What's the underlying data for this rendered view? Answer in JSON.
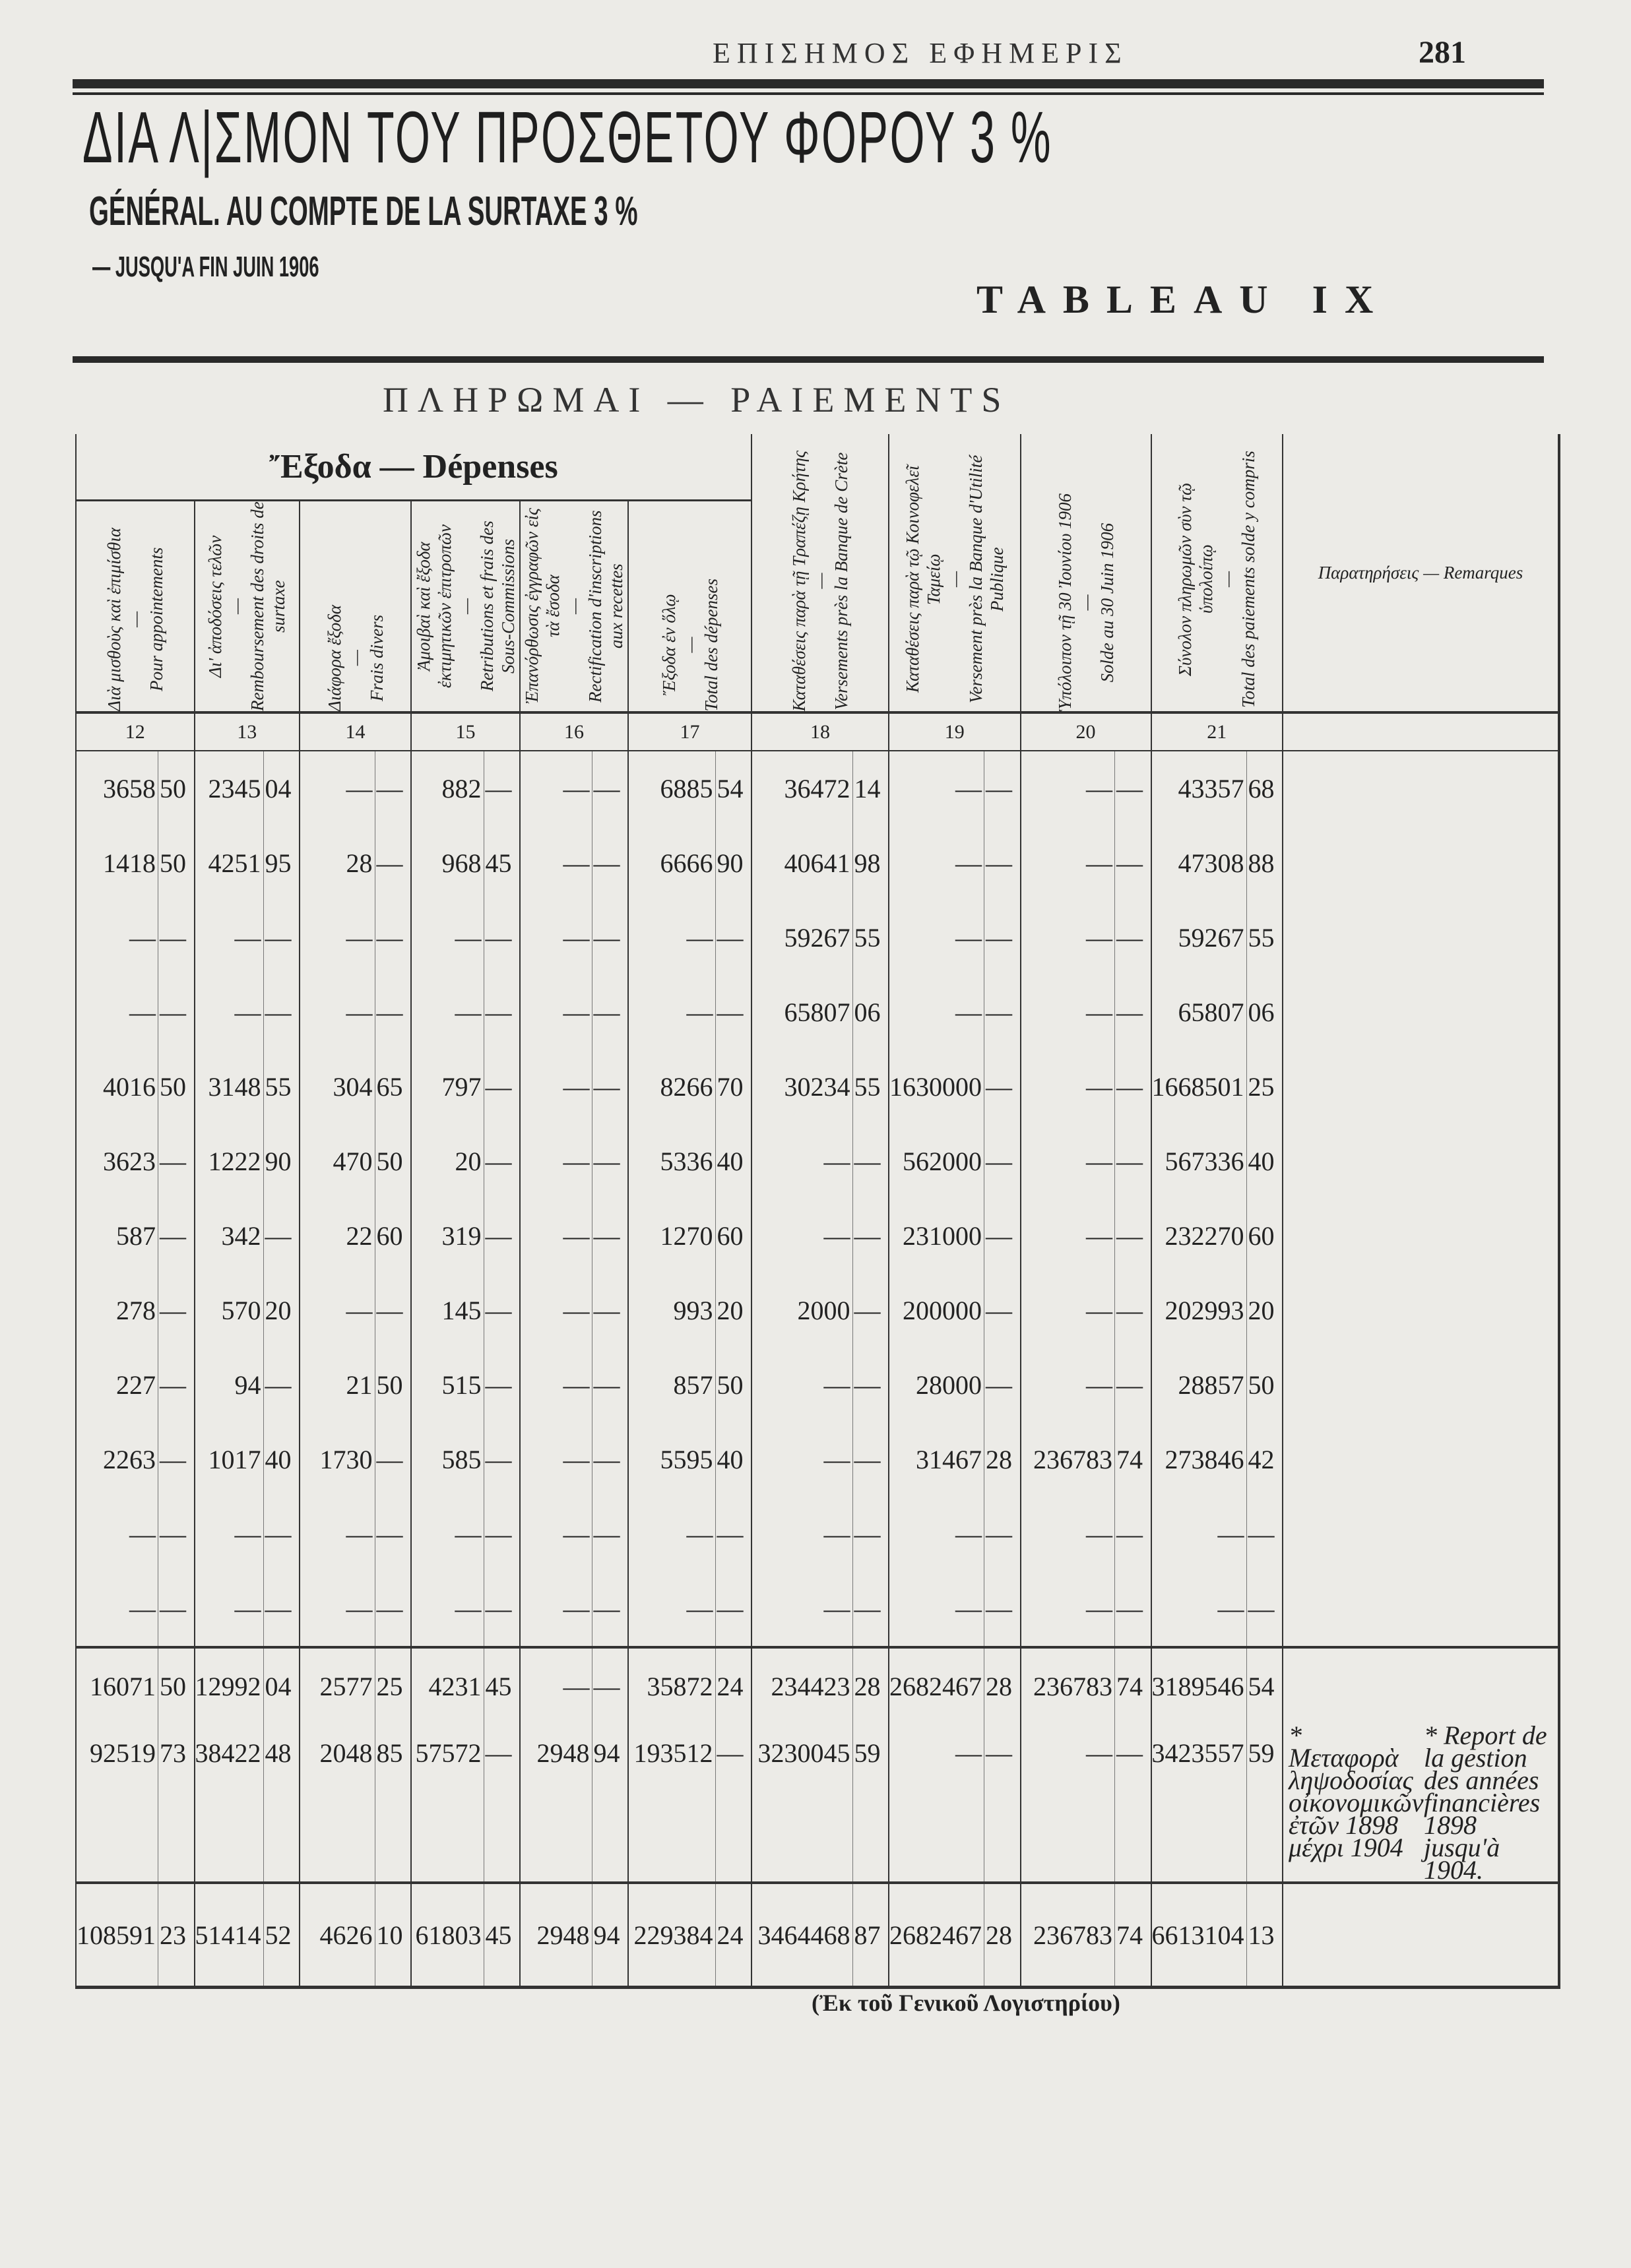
{
  "header": {
    "running_head": "ΕΠΙΣΗΜΟΣ ΕΦΗΜΕΡΙΣ",
    "page_number": "281"
  },
  "title": "ΔΙΑ Λ|ΣΜΟΝ ΤΟΥ ΠΡΟΣΘΕΤΟΥ ΦΟΡΟΥ 3 %",
  "subtitle": "GÉNÉRAL. AU COMPTE DE LA SURTAXE 3 %",
  "until": "— JUSQU'A FIN JUIN 1906",
  "tableau": "TABLEAU IX",
  "section_title": "ΠΛΗΡΩΜΑΙ — PAIEMENTS",
  "depenses_header": "Ἔξοδα — Dépenses",
  "columns": [
    {
      "num": "12",
      "label": "Διὰ μισθοὺς καὶ ἐπιμίσθια\n—\nPour appointements"
    },
    {
      "num": "13",
      "label": "Δι' ἀποδόσεις τελῶν\n—\nRemboursement des droits de surtaxe"
    },
    {
      "num": "14",
      "label": "Διάφορα ἔξοδα\n—\nFrais divers"
    },
    {
      "num": "15",
      "label": "Ἀμοιβαὶ καὶ ἔξοδα ἐκτιμητικῶν ἐπιτροπῶν\n—\nRetributions et frais des Sous-Commissions"
    },
    {
      "num": "16",
      "label": "Ἐπανόρθωσις ἐγγραφῶν εἰς τὰ ἔσοδα\n—\nRectification d'inscriptions aux recettes"
    },
    {
      "num": "17",
      "label": "Ἔξοδα ἐν ὅλῳ\n—\nTotal des dépenses"
    },
    {
      "num": "18",
      "label": "Καταθέσεις παρὰ τῇ Τραπέζῃ Κρήτης\n—\nVersements près la Banque de Crète"
    },
    {
      "num": "19",
      "label": "Καταθέσεις παρὰ τῷ Κοινοφελεῖ Ταμείῳ\n—\nVersement près la Banque d'Utilité Publique"
    },
    {
      "num": "20",
      "label": "Ὑπόλοιπον τῇ 30 Ἰουνίου 1906\n—\nSolde au 30 Juin 1906"
    },
    {
      "num": "21",
      "label": "Σύνολον πληρωμῶν σὺν τῷ ὑπολοίπῳ\n—\nTotal des paiements solde y compris"
    }
  ],
  "remarks_header": "Παρατηρήσεις — Remarques",
  "rows": [
    [
      [
        "3658",
        "50"
      ],
      [
        "2345",
        "04"
      ],
      [
        "—",
        "—"
      ],
      [
        "882",
        "—"
      ],
      [
        "—",
        "—"
      ],
      [
        "6885",
        "54"
      ],
      [
        "36472",
        "14"
      ],
      [
        "—",
        "—"
      ],
      [
        "—",
        "—"
      ],
      [
        "43357",
        "68"
      ]
    ],
    [
      [
        "1418",
        "50"
      ],
      [
        "4251",
        "95"
      ],
      [
        "28",
        "—"
      ],
      [
        "968",
        "45"
      ],
      [
        "—",
        "—"
      ],
      [
        "6666",
        "90"
      ],
      [
        "40641",
        "98"
      ],
      [
        "—",
        "—"
      ],
      [
        "—",
        "—"
      ],
      [
        "47308",
        "88"
      ]
    ],
    [
      [
        "—",
        "—"
      ],
      [
        "—",
        "—"
      ],
      [
        "—",
        "—"
      ],
      [
        "—",
        "—"
      ],
      [
        "—",
        "—"
      ],
      [
        "—",
        "—"
      ],
      [
        "59267",
        "55"
      ],
      [
        "—",
        "—"
      ],
      [
        "—",
        "—"
      ],
      [
        "59267",
        "55"
      ]
    ],
    [
      [
        "—",
        "—"
      ],
      [
        "—",
        "—"
      ],
      [
        "—",
        "—"
      ],
      [
        "—",
        "—"
      ],
      [
        "—",
        "—"
      ],
      [
        "—",
        "—"
      ],
      [
        "65807",
        "06"
      ],
      [
        "—",
        "—"
      ],
      [
        "—",
        "—"
      ],
      [
        "65807",
        "06"
      ]
    ],
    [
      [
        "4016",
        "50"
      ],
      [
        "3148",
        "55"
      ],
      [
        "304",
        "65"
      ],
      [
        "797",
        "—"
      ],
      [
        "—",
        "—"
      ],
      [
        "8266",
        "70"
      ],
      [
        "30234",
        "55"
      ],
      [
        "1630000",
        "—"
      ],
      [
        "—",
        "—"
      ],
      [
        "1668501",
        "25"
      ]
    ],
    [
      [
        "3623",
        "—"
      ],
      [
        "1222",
        "90"
      ],
      [
        "470",
        "50"
      ],
      [
        "20",
        "—"
      ],
      [
        "—",
        "—"
      ],
      [
        "5336",
        "40"
      ],
      [
        "—",
        "—"
      ],
      [
        "562000",
        "—"
      ],
      [
        "—",
        "—"
      ],
      [
        "567336",
        "40"
      ]
    ],
    [
      [
        "587",
        "—"
      ],
      [
        "342",
        "—"
      ],
      [
        "22",
        "60"
      ],
      [
        "319",
        "—"
      ],
      [
        "—",
        "—"
      ],
      [
        "1270",
        "60"
      ],
      [
        "—",
        "—"
      ],
      [
        "231000",
        "—"
      ],
      [
        "—",
        "—"
      ],
      [
        "232270",
        "60"
      ]
    ],
    [
      [
        "278",
        "—"
      ],
      [
        "570",
        "20"
      ],
      [
        "—",
        "—"
      ],
      [
        "145",
        "—"
      ],
      [
        "—",
        "—"
      ],
      [
        "993",
        "20"
      ],
      [
        "2000",
        "—"
      ],
      [
        "200000",
        "—"
      ],
      [
        "—",
        "—"
      ],
      [
        "202993",
        "20"
      ]
    ],
    [
      [
        "227",
        "—"
      ],
      [
        "94",
        "—"
      ],
      [
        "21",
        "50"
      ],
      [
        "515",
        "—"
      ],
      [
        "—",
        "—"
      ],
      [
        "857",
        "50"
      ],
      [
        "—",
        "—"
      ],
      [
        "28000",
        "—"
      ],
      [
        "—",
        "—"
      ],
      [
        "28857",
        "50"
      ]
    ],
    [
      [
        "2263",
        "—"
      ],
      [
        "1017",
        "40"
      ],
      [
        "1730",
        "—"
      ],
      [
        "585",
        "—"
      ],
      [
        "—",
        "—"
      ],
      [
        "5595",
        "40"
      ],
      [
        "—",
        "—"
      ],
      [
        "31467",
        "28"
      ],
      [
        "236783",
        "74"
      ],
      [
        "273846",
        "42"
      ]
    ],
    [
      [
        "—",
        "—"
      ],
      [
        "—",
        "—"
      ],
      [
        "—",
        "—"
      ],
      [
        "—",
        "—"
      ],
      [
        "—",
        "—"
      ],
      [
        "—",
        "—"
      ],
      [
        "—",
        "—"
      ],
      [
        "—",
        "—"
      ],
      [
        "—",
        "—"
      ],
      [
        "—",
        "—"
      ]
    ],
    [
      [
        "—",
        "—"
      ],
      [
        "—",
        "—"
      ],
      [
        "—",
        "—"
      ],
      [
        "—",
        "—"
      ],
      [
        "—",
        "—"
      ],
      [
        "—",
        "—"
      ],
      [
        "—",
        "—"
      ],
      [
        "—",
        "—"
      ],
      [
        "—",
        "—"
      ],
      [
        "—",
        "—"
      ]
    ]
  ],
  "subtotal": [
    [
      "16071",
      "50"
    ],
    [
      "12992",
      "04"
    ],
    [
      "2577",
      "25"
    ],
    [
      "4231",
      "45"
    ],
    [
      "—",
      "—"
    ],
    [
      "35872",
      "24"
    ],
    [
      "234423",
      "28"
    ],
    [
      "2682467",
      "28"
    ],
    [
      "236783",
      "74"
    ],
    [
      "3189546",
      "54"
    ]
  ],
  "report": [
    [
      "92519",
      "73"
    ],
    [
      "38422",
      "48"
    ],
    [
      "2048",
      "85"
    ],
    [
      "57572",
      "—"
    ],
    [
      "2948",
      "94"
    ],
    [
      "193512",
      "—"
    ],
    [
      "3230045",
      "59"
    ],
    [
      "—",
      "—"
    ],
    [
      "—",
      "—"
    ],
    [
      "3423557",
      "59"
    ]
  ],
  "report_remark": {
    "greek": "* Μεταφορὰ ληψοδοσίας οἰκονομικῶν ἐτῶν 1898 μέχρι 1904",
    "french": "* Report de la gestion des années financières 1898 jusqu'à 1904."
  },
  "total": [
    [
      "108591",
      "23"
    ],
    [
      "51414",
      "52"
    ],
    [
      "4626",
      "10"
    ],
    [
      "61803",
      "45"
    ],
    [
      "2948",
      "94"
    ],
    [
      "229384",
      "24"
    ],
    [
      "3464468",
      "87"
    ],
    [
      "2682467",
      "28"
    ],
    [
      "236783",
      "74"
    ],
    [
      "6613104",
      "13"
    ]
  ],
  "source": "(Ἐκ τοῦ Γενικοῦ Λογιστηρίου)"
}
